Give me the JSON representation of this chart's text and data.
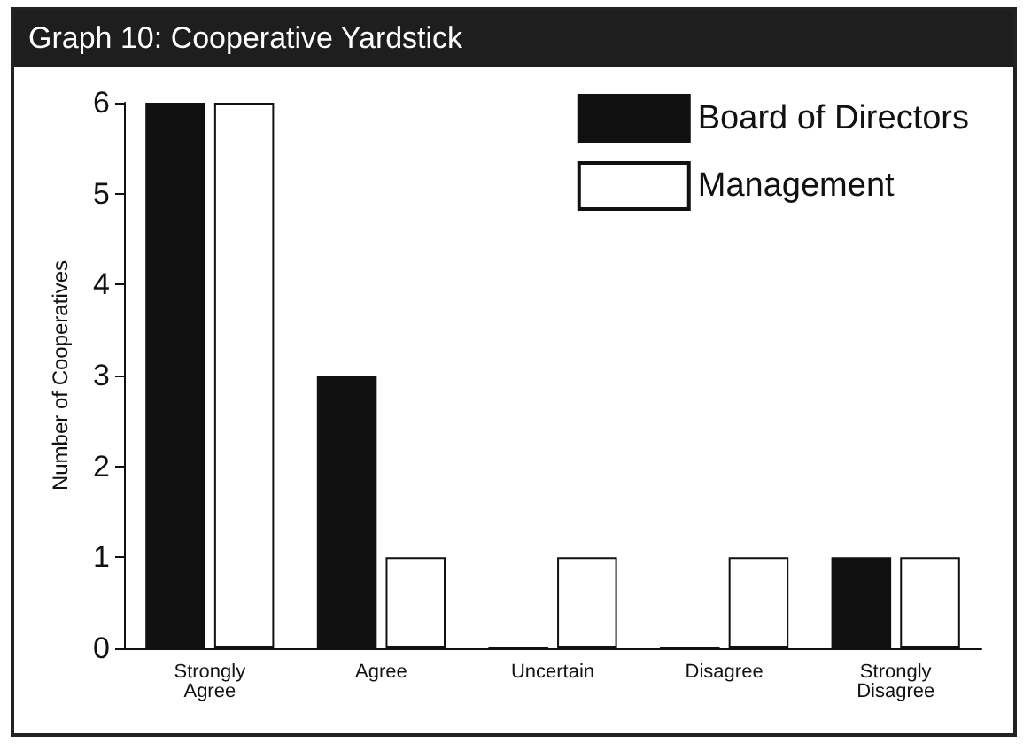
{
  "chart_data": {
    "type": "bar",
    "title": "Graph 10: Cooperative Yardstick",
    "ylabel": "Number of Cooperatives",
    "categories": [
      "Strongly\nAgree",
      "Agree",
      "Uncertain",
      "Disagree",
      "Strongly\nDisagree"
    ],
    "series": [
      {
        "name": "Board of Directors",
        "color": "#111111",
        "values": [
          6,
          3,
          0,
          0,
          1
        ]
      },
      {
        "name": "Management",
        "color": "#ffffff",
        "values": [
          6,
          1,
          1,
          1,
          1
        ]
      }
    ],
    "ylim": [
      0,
      6
    ],
    "yticks": [
      0,
      1,
      2,
      3,
      4,
      5,
      6
    ],
    "grid": false,
    "legend": "top right"
  }
}
